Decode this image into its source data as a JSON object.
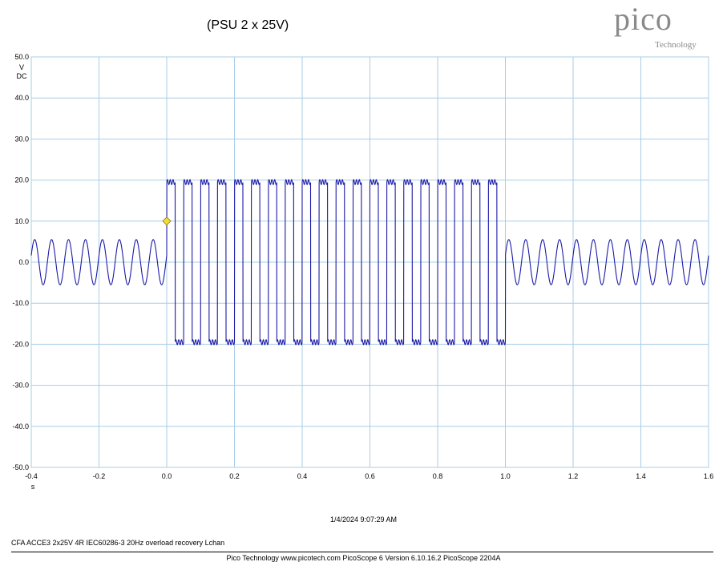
{
  "chart_data": {
    "type": "line",
    "title": "(PSU 2 x 25V)",
    "ylabel_units": [
      "V",
      "DC"
    ],
    "xlabel": "s",
    "xlim": [
      -0.4,
      1.6
    ],
    "ylim": [
      -50,
      50
    ],
    "grid": true,
    "xticks": [
      "-0.4",
      "-0.2",
      "0.0",
      "0.2",
      "0.4",
      "0.6",
      "0.8",
      "1.0",
      "1.2",
      "1.4",
      "1.6"
    ],
    "yticks": [
      "50.0",
      "40.0",
      "30.0",
      "20.0",
      "10.0",
      "0.0",
      "-10.0",
      "-20.0",
      "-30.0",
      "-40.0",
      "-50.0"
    ],
    "series": [
      {
        "color": "#1a1aa8",
        "segments": [
          {
            "t_start": -0.4,
            "t_end": 0.0,
            "form": "sine",
            "frequency_hz": 20,
            "amplitude_v": 5.5,
            "offset_v": 0
          },
          {
            "t_start": 0.0,
            "t_end": 1.0,
            "form": "clipped-square",
            "frequency_hz": 20,
            "high_v": 19.5,
            "low_v": -19.5
          },
          {
            "t_start": 1.0,
            "t_end": 1.6,
            "form": "sine",
            "frequency_hz": 20,
            "amplitude_v": 5.5,
            "offset_v": 0
          }
        ]
      }
    ],
    "trigger_marker": {
      "x": 0.0,
      "y": 10.0,
      "color": "#f2dc3c"
    }
  },
  "timestamp": "1/4/2024 9:07:29 AM",
  "caption": "CFA ACCE3 2x25V 4R IEC60286-3 20Hz overload recovery Lchan",
  "footer": "Pico Technology     www.picotech.com     PicoScope 6 Version 6.10.16.2   PicoScope 2204A",
  "logo": {
    "word": "pico",
    "sub": "Technology"
  }
}
